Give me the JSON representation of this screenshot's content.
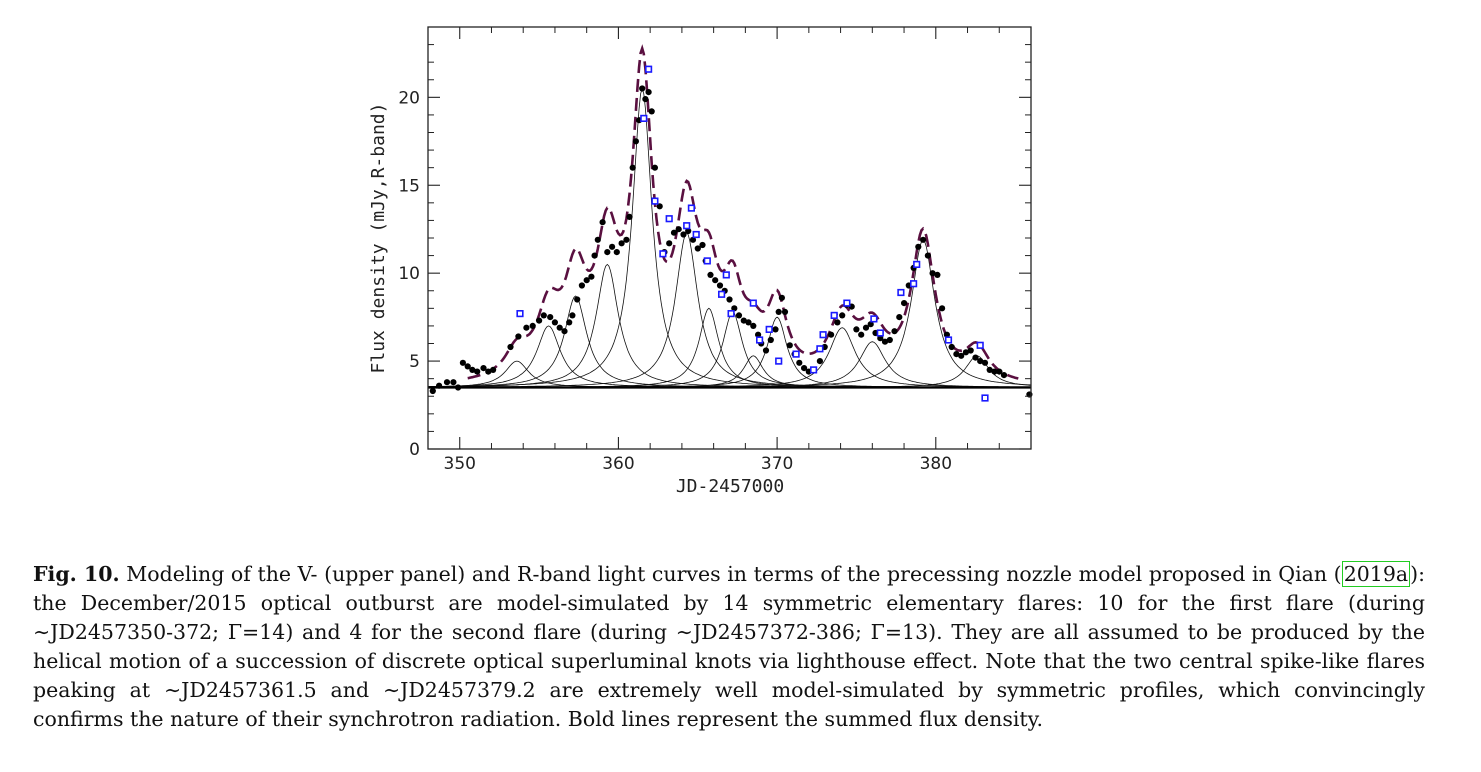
{
  "chart_data": {
    "type": "scatter",
    "xlabel": "JD-2457000",
    "ylabel": "Flux density (mJy,R-band)",
    "xlim": [
      348,
      386
    ],
    "ylim": [
      0,
      24
    ],
    "x_ticks": [
      350,
      360,
      370,
      380
    ],
    "y_ticks": [
      0,
      5,
      10,
      15,
      20
    ],
    "grid": false,
    "baseline": 3.5,
    "flares": [
      {
        "center": 353.6,
        "amplitude": 1.5,
        "width": 0.9
      },
      {
        "center": 355.6,
        "amplitude": 3.5,
        "width": 0.9
      },
      {
        "center": 357.3,
        "amplitude": 5.2,
        "width": 0.85
      },
      {
        "center": 359.3,
        "amplitude": 7.0,
        "width": 0.85
      },
      {
        "center": 361.5,
        "amplitude": 17.0,
        "width": 0.75
      },
      {
        "center": 364.3,
        "amplitude": 8.8,
        "width": 0.85
      },
      {
        "center": 365.7,
        "amplitude": 4.5,
        "width": 0.75
      },
      {
        "center": 367.2,
        "amplitude": 4.3,
        "width": 0.75
      },
      {
        "center": 368.5,
        "amplitude": 1.8,
        "width": 0.75
      },
      {
        "center": 370.0,
        "amplitude": 4.0,
        "width": 0.75
      },
      {
        "center": 374.1,
        "amplitude": 3.4,
        "width": 1.0
      },
      {
        "center": 376.0,
        "amplitude": 2.6,
        "width": 1.0
      },
      {
        "center": 379.2,
        "amplitude": 8.4,
        "width": 0.9
      },
      {
        "center": 382.6,
        "amplitude": 1.8,
        "width": 0.9
      }
    ],
    "series": [
      {
        "marker": "filled-circle",
        "color": "#000000",
        "points": [
          [
            348.3,
            3.3
          ],
          [
            348.7,
            3.6
          ],
          [
            349.2,
            3.8
          ],
          [
            349.6,
            3.8
          ],
          [
            349.9,
            3.5
          ],
          [
            350.2,
            4.9
          ],
          [
            350.5,
            4.7
          ],
          [
            350.8,
            4.5
          ],
          [
            351.1,
            4.4
          ],
          [
            351.5,
            4.6
          ],
          [
            351.8,
            4.4
          ],
          [
            352.1,
            4.5
          ],
          [
            353.2,
            5.8
          ],
          [
            353.7,
            6.4
          ],
          [
            354.2,
            6.9
          ],
          [
            354.6,
            7.0
          ],
          [
            355.0,
            7.3
          ],
          [
            355.3,
            7.6
          ],
          [
            355.7,
            7.5
          ],
          [
            356.0,
            7.2
          ],
          [
            356.3,
            6.9
          ],
          [
            356.6,
            6.7
          ],
          [
            356.9,
            7.2
          ],
          [
            357.1,
            7.6
          ],
          [
            357.4,
            8.5
          ],
          [
            357.7,
            9.3
          ],
          [
            358.0,
            9.6
          ],
          [
            358.3,
            9.8
          ],
          [
            358.5,
            11.0
          ],
          [
            358.7,
            11.9
          ],
          [
            359.0,
            12.9
          ],
          [
            359.3,
            11.2
          ],
          [
            359.6,
            11.5
          ],
          [
            359.9,
            11.2
          ],
          [
            360.2,
            11.7
          ],
          [
            360.5,
            11.9
          ],
          [
            360.7,
            13.2
          ],
          [
            360.9,
            16.0
          ],
          [
            361.1,
            17.5
          ],
          [
            361.3,
            18.7
          ],
          [
            361.5,
            20.5
          ],
          [
            361.7,
            19.9
          ],
          [
            361.9,
            20.3
          ],
          [
            362.1,
            19.2
          ],
          [
            362.3,
            16.0
          ],
          [
            362.6,
            13.8
          ],
          [
            362.9,
            11.2
          ],
          [
            363.2,
            11.7
          ],
          [
            363.5,
            12.3
          ],
          [
            363.8,
            12.5
          ],
          [
            364.1,
            12.2
          ],
          [
            364.4,
            12.4
          ],
          [
            364.7,
            11.9
          ],
          [
            365.0,
            11.4
          ],
          [
            365.3,
            11.6
          ],
          [
            365.5,
            10.7
          ],
          [
            365.8,
            9.9
          ],
          [
            366.1,
            9.6
          ],
          [
            366.4,
            9.3
          ],
          [
            366.7,
            9.0
          ],
          [
            367.0,
            8.5
          ],
          [
            367.3,
            8.0
          ],
          [
            367.6,
            7.6
          ],
          [
            367.9,
            7.3
          ],
          [
            368.2,
            7.2
          ],
          [
            368.5,
            7.0
          ],
          [
            368.8,
            6.5
          ],
          [
            369.0,
            6.0
          ],
          [
            369.3,
            5.6
          ],
          [
            369.6,
            6.2
          ],
          [
            369.9,
            6.8
          ],
          [
            370.1,
            7.8
          ],
          [
            370.3,
            8.6
          ],
          [
            370.5,
            7.8
          ],
          [
            370.8,
            5.9
          ],
          [
            371.1,
            5.4
          ],
          [
            371.4,
            4.9
          ],
          [
            371.7,
            4.6
          ],
          [
            372.0,
            4.4
          ],
          [
            372.3,
            4.5
          ],
          [
            372.7,
            5.0
          ],
          [
            373.0,
            5.8
          ],
          [
            373.4,
            6.5
          ],
          [
            373.8,
            7.2
          ],
          [
            374.1,
            7.6
          ],
          [
            374.4,
            8.2
          ],
          [
            374.7,
            8.1
          ],
          [
            375.0,
            6.8
          ],
          [
            375.3,
            6.5
          ],
          [
            375.6,
            6.9
          ],
          [
            375.9,
            7.1
          ],
          [
            376.2,
            6.6
          ],
          [
            376.5,
            6.3
          ],
          [
            376.8,
            6.1
          ],
          [
            377.1,
            6.2
          ],
          [
            377.4,
            6.7
          ],
          [
            377.7,
            7.5
          ],
          [
            378.0,
            8.3
          ],
          [
            378.3,
            9.3
          ],
          [
            378.6,
            10.3
          ],
          [
            378.9,
            11.5
          ],
          [
            379.2,
            11.9
          ],
          [
            379.5,
            11.0
          ],
          [
            379.8,
            10.0
          ],
          [
            380.1,
            9.9
          ],
          [
            380.4,
            8.0
          ],
          [
            380.7,
            6.5
          ],
          [
            381.0,
            5.8
          ],
          [
            381.3,
            5.4
          ],
          [
            381.6,
            5.3
          ],
          [
            381.9,
            5.5
          ],
          [
            382.2,
            5.6
          ],
          [
            382.5,
            5.2
          ],
          [
            382.8,
            5.0
          ],
          [
            383.1,
            4.9
          ],
          [
            383.4,
            4.5
          ],
          [
            383.7,
            4.4
          ],
          [
            384.0,
            4.4
          ],
          [
            384.3,
            4.2
          ],
          [
            385.9,
            3.1
          ]
        ]
      },
      {
        "marker": "open-square",
        "color": "#1a1aff",
        "points": [
          [
            353.8,
            7.7
          ],
          [
            361.9,
            21.6
          ],
          [
            361.6,
            18.8
          ],
          [
            362.3,
            14.1
          ],
          [
            362.8,
            11.1
          ],
          [
            363.2,
            13.1
          ],
          [
            364.3,
            12.7
          ],
          [
            364.6,
            13.7
          ],
          [
            364.9,
            12.2
          ],
          [
            365.6,
            10.7
          ],
          [
            366.8,
            9.9
          ],
          [
            366.5,
            8.8
          ],
          [
            367.1,
            7.7
          ],
          [
            368.5,
            8.3
          ],
          [
            368.9,
            6.2
          ],
          [
            369.5,
            6.8
          ],
          [
            370.1,
            5.0
          ],
          [
            371.2,
            5.4
          ],
          [
            372.3,
            4.5
          ],
          [
            372.7,
            5.7
          ],
          [
            372.9,
            6.5
          ],
          [
            373.6,
            7.6
          ],
          [
            374.4,
            8.3
          ],
          [
            376.1,
            7.4
          ],
          [
            376.5,
            6.6
          ],
          [
            377.8,
            8.9
          ],
          [
            378.6,
            9.4
          ],
          [
            378.8,
            10.5
          ],
          [
            380.8,
            6.2
          ],
          [
            382.8,
            5.9
          ],
          [
            383.1,
            2.9
          ]
        ]
      }
    ]
  },
  "caption": {
    "label": "Fig. 10.",
    "text_before_cite": " Modeling of the V- (upper panel) and R-band light curves in terms of the precessing nozzle model proposed in Qian (",
    "cite": "2019a",
    "text_after_cite": "): the December/2015 optical outburst are model-simulated by 14 symmetric elementary flares: 10 for the first flare (during ∼JD2457350-372; Γ=14) and 4 for the second flare (during ∼JD2457372-386; Γ=13). They are all assumed to be produced by the helical motion of a succession of discrete optical superluminal knots via lighthouse effect. Note that the two central spike-like flares peaking at ∼JD2457361.5 and ∼JD2457379.2 are extremely well model-simulated by symmetric profiles, which convincingly confirms the nature of their synchrotron radiation. Bold lines represent the summed flux density."
  }
}
